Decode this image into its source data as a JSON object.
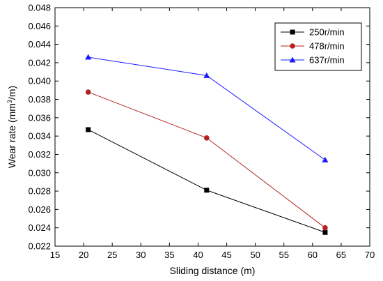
{
  "chart_data": {
    "type": "line",
    "xlabel": "Sliding distance (m)",
    "ylabel_main": "Wear rate (mm",
    "ylabel_sup": "3",
    "ylabel_tail": "/m)",
    "xlim": [
      15,
      70
    ],
    "ylim": [
      0.022,
      0.048
    ],
    "x_ticks": [
      15,
      20,
      25,
      30,
      35,
      40,
      45,
      50,
      55,
      60,
      65,
      70
    ],
    "y_ticks": [
      0.022,
      0.024,
      0.026,
      0.028,
      0.03,
      0.032,
      0.034,
      0.036,
      0.038,
      0.04,
      0.042,
      0.044,
      0.046,
      0.048
    ],
    "x_tick_labels": [
      "15",
      "20",
      "25",
      "30",
      "35",
      "40",
      "45",
      "50",
      "55",
      "60",
      "65",
      "70"
    ],
    "y_tick_labels": [
      "0.022",
      "0.024",
      "0.026",
      "0.028",
      "0.030",
      "0.032",
      "0.034",
      "0.036",
      "0.038",
      "0.040",
      "0.042",
      "0.044",
      "0.046",
      "0.048"
    ],
    "legend_position": "top-right",
    "series": [
      {
        "name": "250r/min",
        "color": "#000000",
        "marker": "square",
        "x": [
          20.8,
          41.5,
          62.2
        ],
        "y": [
          0.0347,
          0.0281,
          0.0235
        ]
      },
      {
        "name": "478r/min",
        "color": "#b22222",
        "marker": "circle",
        "x": [
          20.8,
          41.5,
          62.2
        ],
        "y": [
          0.0388,
          0.0338,
          0.024
        ]
      },
      {
        "name": "637r/min",
        "color": "#1a1aff",
        "marker": "triangle",
        "x": [
          20.8,
          41.5,
          62.2
        ],
        "y": [
          0.0426,
          0.0406,
          0.0314
        ]
      }
    ]
  }
}
